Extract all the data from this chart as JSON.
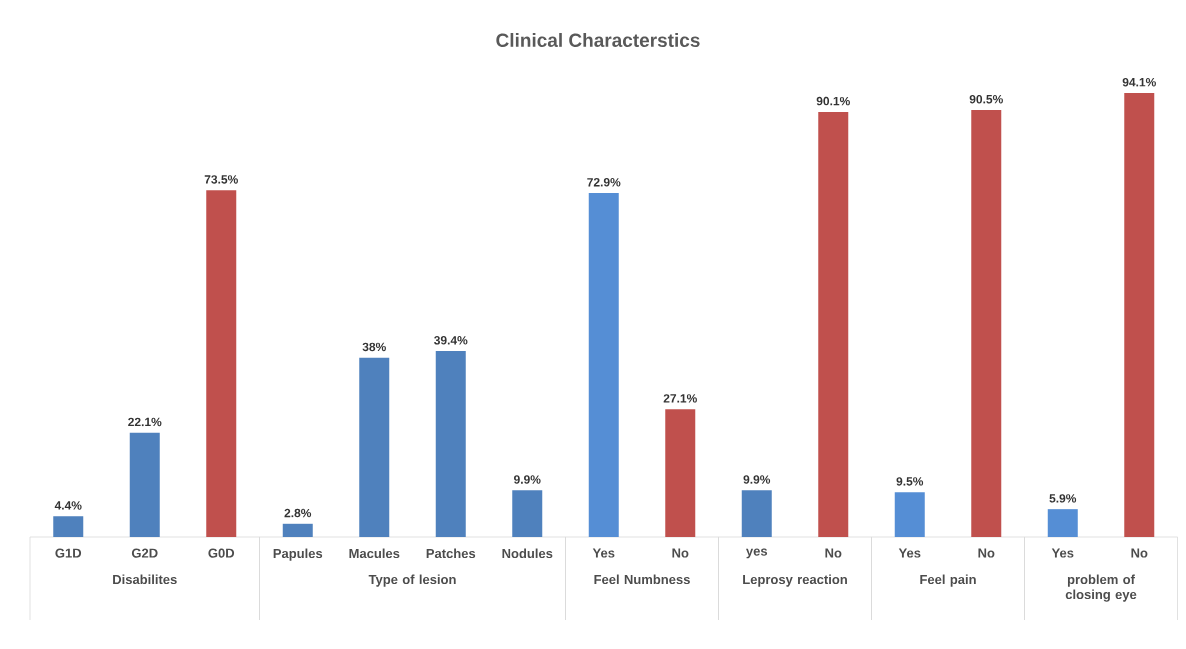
{
  "chart_data": [
    {
      "type": "other",
      "title": "Clinical Characterstics"
    },
    {
      "type": "bar",
      "xlabel": "Disabilites",
      "categories": [
        "G1D",
        "G2D",
        "G0D"
      ],
      "values": [
        4.4,
        22.1,
        73.5
      ],
      "colors": [
        "#4f81bd",
        "#4f81bd",
        "#c0504d"
      ],
      "value_labels": [
        "4.4%",
        "22.1%",
        "73.5%"
      ]
    },
    {
      "type": "bar",
      "xlabel": "Type of lesion",
      "categories": [
        "Papules",
        "Macules",
        "Patches",
        "Nodules"
      ],
      "values": [
        2.8,
        38,
        39.4,
        9.9
      ],
      "colors": [
        "#4f81bd",
        "#4f81bd",
        "#4f81bd",
        "#4f81bd"
      ],
      "value_labels": [
        "2.8%",
        "38%",
        "39.4%",
        "9.9%"
      ]
    },
    {
      "type": "bar",
      "xlabel": "Feel Numbness",
      "categories": [
        "Yes",
        "No"
      ],
      "values": [
        72.9,
        27.1
      ],
      "colors": [
        "#558ed5",
        "#c0504d"
      ],
      "value_labels": [
        "72.9%",
        "27.1%"
      ]
    },
    {
      "type": "bar",
      "xlabel": "Leprosy reaction",
      "categories": [
        "yes",
        "No"
      ],
      "values": [
        9.9,
        90.1
      ],
      "colors": [
        "#4f81bd",
        "#c0504d"
      ],
      "value_labels": [
        "9.9%",
        "90.1%"
      ]
    },
    {
      "type": "bar",
      "xlabel": "Feel pain",
      "categories": [
        "Yes",
        "No"
      ],
      "values": [
        9.5,
        90.5
      ],
      "colors": [
        "#558ed5",
        "#c0504d"
      ],
      "value_labels": [
        "9.5%",
        "90.5%"
      ]
    },
    {
      "type": "bar",
      "xlabel": "problem of closing eye",
      "categories": [
        "Yes",
        "No"
      ],
      "values": [
        5.9,
        94.1
      ],
      "colors": [
        "#558ed5",
        "#c0504d"
      ],
      "value_labels": [
        "5.9%",
        "94.1%"
      ]
    }
  ]
}
